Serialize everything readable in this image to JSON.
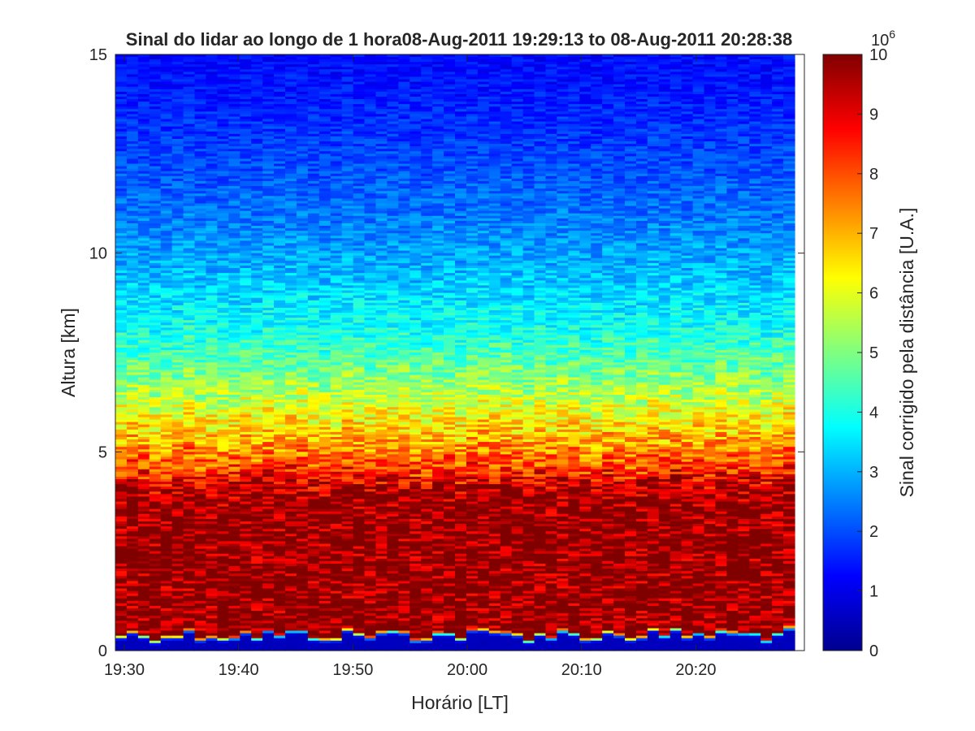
{
  "chart_data": {
    "type": "heatmap",
    "title": "Sinal do lidar ao longo de 1 hora08-Aug-2011 19:29:13 to 08-Aug-2011 20:28:38",
    "xlabel": "Horário [LT]",
    "ylabel": "Altura [km]",
    "colorbar_label": "Sinal corrigido pela distância [U.A.]",
    "colorbar_exponent": "10",
    "colorbar_exponent_power": "6",
    "colormap": "jet",
    "x_start": "19:29:13",
    "x_end": "20:28:38",
    "x_tick_labels": [
      "19:30",
      "19:40",
      "19:50",
      "20:00",
      "20:10",
      "20:20"
    ],
    "x_tick_minutes": [
      0.78,
      10.78,
      20.78,
      30.78,
      40.78,
      50.78
    ],
    "xlim_minutes": [
      0,
      59.42
    ],
    "y_tick_labels": [
      "0",
      "5",
      "10",
      "15"
    ],
    "y_ticks": [
      0,
      5,
      10,
      15
    ],
    "ylim": [
      0,
      15
    ],
    "c_tick_labels": [
      "0",
      "1",
      "2",
      "3",
      "4",
      "5",
      "6",
      "7",
      "8",
      "9",
      "10"
    ],
    "c_ticks": [
      0,
      1,
      2,
      3,
      4,
      5,
      6,
      7,
      8,
      9,
      10
    ],
    "clim": [
      0,
      10
    ],
    "profile_altitude_km": [
      0.0,
      0.3,
      0.36,
      0.4,
      0.45,
      1.0,
      3.5,
      4.0,
      4.3,
      4.7,
      5.2,
      5.8,
      6.5,
      7.3,
      8.3,
      9.5,
      11.0,
      12.5,
      14.0,
      15.0
    ],
    "profile_signal": [
      0.6,
      0.6,
      2.0,
      6.0,
      10.0,
      10.0,
      10.0,
      9.7,
      8.9,
      8.0,
      7.2,
      6.4,
      5.5,
      4.6,
      3.8,
      3.1,
      2.4,
      1.9,
      1.5,
      1.3
    ]
  }
}
